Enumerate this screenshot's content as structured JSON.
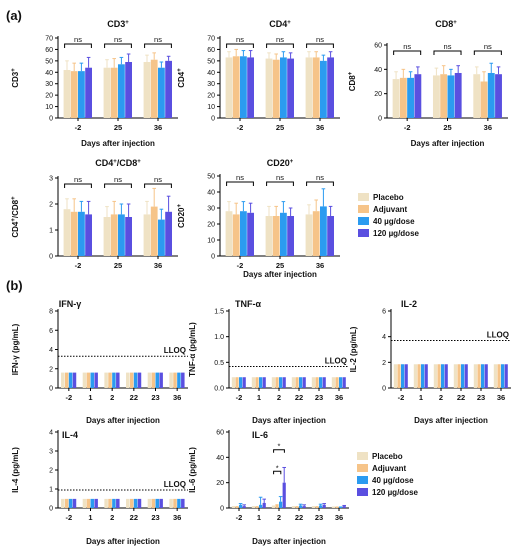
{
  "panel_labels": {
    "a": "(a)",
    "b": "(b)"
  },
  "colors": {
    "Placebo": "#efe2c4",
    "Adjuvant": "#f6c489",
    "40 µg/dose": "#2b9bf0",
    "120 µg/dose": "#5a4fe0"
  },
  "legends": [
    {
      "items": [
        "Placebo",
        "Adjuvant",
        "40 µg/dose",
        "120 µg/dose"
      ]
    },
    {
      "items": [
        "Placebo",
        "Adjuvant",
        "40 µg/dose",
        "120 µg/dose"
      ]
    }
  ],
  "chart_data": [
    {
      "id": "cd3",
      "type": "bar",
      "title": "CD3",
      "title_sup": "+",
      "ylabel": "CD3",
      "ylabel_sup": "+",
      "xlabel": "Days after injection",
      "categories": [
        "-2",
        "25",
        "36"
      ],
      "yticks": [
        "0",
        "10",
        "20",
        "30",
        "40",
        "50",
        "60",
        "70"
      ],
      "ylim": [
        0,
        70
      ],
      "series": [
        {
          "name": "Placebo",
          "values": [
            42,
            44,
            49
          ],
          "err": [
            8,
            7,
            6
          ]
        },
        {
          "name": "Adjuvant",
          "values": [
            41,
            44,
            51
          ],
          "err": [
            7,
            8,
            6
          ]
        },
        {
          "name": "40 µg/dose",
          "values": [
            41,
            47,
            44
          ],
          "err": [
            7,
            6,
            5
          ]
        },
        {
          "name": "120 µg/dose",
          "values": [
            44,
            49,
            50
          ],
          "err": [
            9,
            7,
            4
          ]
        }
      ],
      "sig": [
        "ns",
        "ns",
        "ns"
      ]
    },
    {
      "id": "cd4",
      "type": "bar",
      "title": "CD4",
      "title_sup": "+",
      "ylabel": "CD4",
      "ylabel_sup": "+",
      "xlabel": "Days after injection",
      "categories": [
        "-2",
        "25",
        "36"
      ],
      "yticks": [
        "0",
        "10",
        "20",
        "30",
        "40",
        "50",
        "60",
        "70"
      ],
      "ylim": [
        0,
        70
      ],
      "series": [
        {
          "name": "Placebo",
          "values": [
            53,
            52,
            53
          ],
          "err": [
            5,
            5,
            5
          ]
        },
        {
          "name": "Adjuvant",
          "values": [
            54,
            51,
            53
          ],
          "err": [
            6,
            5,
            5
          ]
        },
        {
          "name": "40 µg/dose",
          "values": [
            54,
            53,
            50
          ],
          "err": [
            5,
            5,
            5
          ]
        },
        {
          "name": "120 µg/dose",
          "values": [
            53,
            52,
            53
          ],
          "err": [
            6,
            5,
            5
          ]
        }
      ],
      "sig": [
        "ns",
        "ns",
        "ns"
      ]
    },
    {
      "id": "cd8",
      "type": "bar",
      "title": "CD8",
      "title_sup": "+",
      "ylabel": "CD8",
      "ylabel_sup": "+",
      "xlabel": "Days after injection",
      "categories": [
        "-2",
        "25",
        "36"
      ],
      "yticks": [
        "0",
        "20",
        "40",
        "60"
      ],
      "ylim": [
        0,
        60
      ],
      "series": [
        {
          "name": "Placebo",
          "values": [
            32,
            35,
            36
          ],
          "err": [
            6,
            6,
            6
          ]
        },
        {
          "name": "Adjuvant",
          "values": [
            33,
            36,
            30
          ],
          "err": [
            7,
            7,
            8
          ]
        },
        {
          "name": "40 µg/dose",
          "values": [
            33,
            35,
            37
          ],
          "err": [
            5,
            5,
            8
          ]
        },
        {
          "name": "120 µg/dose",
          "values": [
            36,
            37,
            36
          ],
          "err": [
            6,
            6,
            6
          ]
        }
      ],
      "sig": [
        "ns",
        "ns",
        "ns"
      ]
    },
    {
      "id": "cd4cd8",
      "type": "bar",
      "title": "CD4",
      "title_sup": "+",
      "title_rest": "/CD8",
      "title_sup2": "+",
      "ylabel": "CD4",
      "ylabel_sup": "+",
      "ylabel_rest": "/CD8",
      "ylabel_sup2": "+",
      "xlabel": "",
      "categories": [
        "-2",
        "25",
        "36"
      ],
      "yticks": [
        "0",
        "1",
        "2",
        "3"
      ],
      "ylim": [
        0,
        3
      ],
      "series": [
        {
          "name": "Placebo",
          "values": [
            1.8,
            1.5,
            1.6
          ],
          "err": [
            0.4,
            0.4,
            0.5
          ]
        },
        {
          "name": "Adjuvant",
          "values": [
            1.7,
            1.6,
            1.9
          ],
          "err": [
            0.5,
            0.5,
            0.7
          ]
        },
        {
          "name": "40 µg/dose",
          "values": [
            1.7,
            1.6,
            1.4
          ],
          "err": [
            0.4,
            0.4,
            0.4
          ]
        },
        {
          "name": "120 µg/dose",
          "values": [
            1.6,
            1.5,
            1.7
          ],
          "err": [
            0.5,
            0.5,
            0.6
          ]
        }
      ],
      "sig": [
        "ns",
        "ns",
        "ns"
      ]
    },
    {
      "id": "cd20",
      "type": "bar",
      "title": "CD20",
      "title_sup": "+",
      "ylabel": "CD20",
      "ylabel_sup": "+",
      "xlabel": "Days after injection",
      "categories": [
        "-2",
        "25",
        "36"
      ],
      "yticks": [
        "0",
        "10",
        "20",
        "30",
        "40",
        "50"
      ],
      "ylim": [
        0,
        50
      ],
      "series": [
        {
          "name": "Placebo",
          "values": [
            28,
            25,
            26
          ],
          "err": [
            6,
            6,
            6
          ]
        },
        {
          "name": "Adjuvant",
          "values": [
            26,
            25,
            28
          ],
          "err": [
            7,
            6,
            7
          ]
        },
        {
          "name": "40 µg/dose",
          "values": [
            28,
            27,
            31
          ],
          "err": [
            6,
            7,
            11
          ]
        },
        {
          "name": "120 µg/dose",
          "values": [
            27,
            25,
            25
          ],
          "err": [
            6,
            5,
            6
          ]
        }
      ],
      "sig": [
        "ns",
        "ns",
        "ns"
      ]
    },
    {
      "id": "ifng",
      "type": "bar",
      "title": "IFN-γ",
      "ylabel": "IFN-γ (pg/mL)",
      "xlabel": "Days after injection",
      "categories": [
        "-2",
        "1",
        "2",
        "22",
        "23",
        "36"
      ],
      "yticks": [
        "0",
        "2",
        "4",
        "6",
        "8"
      ],
      "ylim": [
        0,
        8
      ],
      "lloq": {
        "label": "LLOQ",
        "value": 3.3
      },
      "series": [
        {
          "name": "Placebo",
          "values": [
            1.6,
            1.6,
            1.6,
            1.6,
            1.6,
            1.6
          ]
        },
        {
          "name": "Adjuvant",
          "values": [
            1.6,
            1.6,
            1.6,
            1.6,
            1.6,
            1.6
          ]
        },
        {
          "name": "40 µg/dose",
          "values": [
            1.6,
            1.6,
            1.6,
            1.6,
            1.6,
            1.6
          ]
        },
        {
          "name": "120 µg/dose",
          "values": [
            1.6,
            1.6,
            1.6,
            1.6,
            1.6,
            1.6
          ]
        }
      ]
    },
    {
      "id": "tnfa",
      "type": "bar",
      "title": "TNF-α",
      "ylabel": "TNF-α (pg/mL)",
      "xlabel": "Days after injection",
      "categories": [
        "-2",
        "1",
        "2",
        "22",
        "23",
        "36"
      ],
      "yticks": [
        "0.0",
        "0.5",
        "1.0",
        "1.5"
      ],
      "ylim": [
        0,
        1.5
      ],
      "lloq": {
        "label": "LLOQ",
        "value": 0.42
      },
      "series": [
        {
          "name": "Placebo",
          "values": [
            0.21,
            0.21,
            0.21,
            0.21,
            0.21,
            0.21
          ]
        },
        {
          "name": "Adjuvant",
          "values": [
            0.21,
            0.21,
            0.21,
            0.21,
            0.21,
            0.21
          ]
        },
        {
          "name": "40 µg/dose",
          "values": [
            0.21,
            0.21,
            0.21,
            0.21,
            0.21,
            0.21
          ]
        },
        {
          "name": "120 µg/dose",
          "values": [
            0.21,
            0.21,
            0.21,
            0.21,
            0.21,
            0.21
          ]
        }
      ]
    },
    {
      "id": "il2",
      "type": "bar",
      "title": "IL-2",
      "ylabel": "IL-2 (pg/mL)",
      "xlabel": "Days after injection",
      "categories": [
        "-2",
        "1",
        "2",
        "22",
        "23",
        "36"
      ],
      "yticks": [
        "0",
        "2",
        "4",
        "6"
      ],
      "ylim": [
        0,
        6
      ],
      "lloq": {
        "label": "LLOQ",
        "value": 3.7
      },
      "series": [
        {
          "name": "Placebo",
          "values": [
            1.85,
            1.85,
            1.85,
            1.85,
            1.85,
            1.85
          ]
        },
        {
          "name": "Adjuvant",
          "values": [
            1.85,
            1.85,
            1.85,
            1.85,
            1.85,
            1.85
          ]
        },
        {
          "name": "40 µg/dose",
          "values": [
            1.85,
            1.85,
            1.85,
            1.85,
            1.85,
            1.85
          ]
        },
        {
          "name": "120 µg/dose",
          "values": [
            1.85,
            1.85,
            1.85,
            1.85,
            1.85,
            1.85
          ]
        }
      ]
    },
    {
      "id": "il4",
      "type": "bar",
      "title": "IL-4",
      "ylabel": "IL-4 (pg/mL)",
      "xlabel": "Days after injection",
      "categories": [
        "-2",
        "1",
        "2",
        "22",
        "23",
        "36"
      ],
      "yticks": [
        "0",
        "1",
        "2",
        "3",
        "4"
      ],
      "ylim": [
        0,
        4
      ],
      "lloq": {
        "label": "LLOQ",
        "value": 0.95
      },
      "series": [
        {
          "name": "Placebo",
          "values": [
            0.48,
            0.48,
            0.48,
            0.48,
            0.48,
            0.48
          ]
        },
        {
          "name": "Adjuvant",
          "values": [
            0.48,
            0.48,
            0.48,
            0.48,
            0.48,
            0.48
          ]
        },
        {
          "name": "40 µg/dose",
          "values": [
            0.48,
            0.48,
            0.48,
            0.48,
            0.48,
            0.48
          ]
        },
        {
          "name": "120 µg/dose",
          "values": [
            0.48,
            0.48,
            0.48,
            0.48,
            0.48,
            0.48
          ]
        }
      ]
    },
    {
      "id": "il6",
      "type": "bar",
      "title": "IL-6",
      "ylabel": "IL-6 (pg/mL)",
      "xlabel": "Days after injection",
      "categories": [
        "-2",
        "1",
        "2",
        "22",
        "23",
        "36"
      ],
      "yticks": [
        "0",
        "20",
        "40",
        "60"
      ],
      "ylim": [
        0,
        60
      ],
      "series": [
        {
          "name": "Placebo",
          "values": [
            1.5,
            1.5,
            2,
            1.5,
            1.5,
            1.2
          ]
        },
        {
          "name": "Adjuvant",
          "values": [
            1.5,
            1.5,
            3,
            1.5,
            1.5,
            1.2
          ]
        },
        {
          "name": "40 µg/dose",
          "values": [
            2.5,
            2.5,
            5,
            2,
            2,
            1.2
          ],
          "err": [
            1,
            6,
            4,
            1,
            1,
            0
          ]
        },
        {
          "name": "120 µg/dose",
          "values": [
            1.5,
            4,
            20,
            1.5,
            2.5,
            1.5
          ],
          "err": [
            1,
            3,
            12,
            1,
            1,
            0.5
          ]
        }
      ],
      "sig_marks": [
        "*",
        "*"
      ]
    }
  ]
}
